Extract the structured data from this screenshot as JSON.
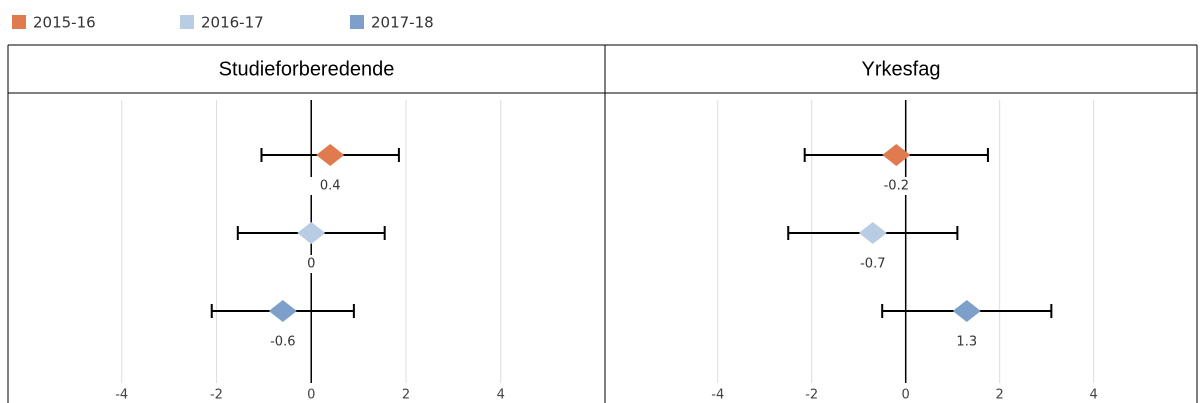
{
  "chart_data": [
    {
      "type": "dot",
      "title": "Studieforberedende",
      "series": [
        {
          "name": "2015-16",
          "color": "#e07b4f",
          "values": [
            0.4
          ],
          "errors": [
            1.45
          ]
        },
        {
          "name": "2016-17",
          "color": "#b8cce4",
          "values": [
            0
          ],
          "errors": [
            1.55
          ]
        },
        {
          "name": "2017-18",
          "color": "#7f9fcb",
          "values": [
            -0.6
          ],
          "errors": [
            1.5
          ]
        }
      ],
      "xlim": [
        -6.4,
        6.2
      ],
      "xticks": [
        -4,
        -2,
        0,
        2,
        4
      ],
      "grid": true
    },
    {
      "type": "dot",
      "title": "Yrkesfag",
      "series": [
        {
          "name": "2015-16",
          "color": "#e07b4f",
          "values": [
            -0.2
          ],
          "errors": [
            1.95
          ]
        },
        {
          "name": "2016-17",
          "color": "#b8cce4",
          "values": [
            -0.7
          ],
          "errors": [
            1.8
          ]
        },
        {
          "name": "2017-18",
          "color": "#7f9fcb",
          "values": [
            1.3
          ],
          "errors": [
            1.8
          ]
        }
      ],
      "xlim": [
        -6.4,
        6.2
      ],
      "xticks": [
        -4,
        -2,
        0,
        2,
        4
      ],
      "grid": true
    }
  ]
}
